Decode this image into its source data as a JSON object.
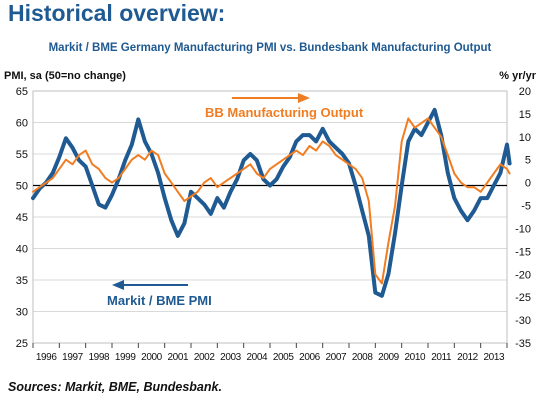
{
  "page": {
    "title": "Historical overview:",
    "source": "Sources: Markit, BME, Bundesbank."
  },
  "colors": {
    "title": "#1f5a92",
    "pmi_series": "#1f5a92",
    "output_series": "#f07d22",
    "axis_text": "#111111",
    "gridline": "#d9d9d9",
    "reference_line": "#000000"
  },
  "chart_data": {
    "type": "line",
    "title": "Markit / BME Germany Manufacturing PMI vs. Bundesbank Manufacturing Output",
    "ylabel_left": "PMI, sa (50=no change)",
    "ylabel_right": "% yr/yr",
    "ylim_left": [
      25,
      65
    ],
    "ylim_right": [
      -35,
      20
    ],
    "yticks_left": [
      25,
      30,
      35,
      40,
      45,
      50,
      55,
      60,
      65
    ],
    "yticks_right": [
      -35,
      -30,
      -25,
      -20,
      -15,
      -10,
      -5,
      0,
      5,
      10,
      15,
      20
    ],
    "xlim": [
      1996,
      2014
    ],
    "categories": [
      "1996",
      "1997",
      "1998",
      "1999",
      "2000",
      "2001",
      "2002",
      "2003",
      "2004",
      "2005",
      "2006",
      "2007",
      "2008",
      "2009",
      "2010",
      "2011",
      "2012",
      "2013"
    ],
    "reference_line": {
      "axis": "left",
      "value": 50
    },
    "grid": true,
    "annotations": [
      {
        "text": "BB Manufacturing Output",
        "points_to": "right-axis"
      },
      {
        "text": "Markit / BME PMI",
        "points_to": "left-axis"
      }
    ],
    "series": [
      {
        "name": "Markit / BME PMI",
        "axis": "left",
        "x": [
          1996.0,
          1996.25,
          1996.5,
          1996.75,
          1997.0,
          1997.25,
          1997.5,
          1997.75,
          1998.0,
          1998.25,
          1998.5,
          1998.75,
          1999.0,
          1999.25,
          1999.5,
          1999.75,
          2000.0,
          2000.25,
          2000.5,
          2000.75,
          2001.0,
          2001.25,
          2001.5,
          2001.75,
          2002.0,
          2002.25,
          2002.5,
          2002.75,
          2003.0,
          2003.25,
          2003.5,
          2003.75,
          2004.0,
          2004.25,
          2004.5,
          2004.75,
          2005.0,
          2005.25,
          2005.5,
          2005.75,
          2006.0,
          2006.25,
          2006.5,
          2006.75,
          2007.0,
          2007.25,
          2007.5,
          2007.75,
          2008.0,
          2008.25,
          2008.5,
          2008.75,
          2009.0,
          2009.25,
          2009.5,
          2009.75,
          2010.0,
          2010.25,
          2010.5,
          2010.75,
          2011.0,
          2011.25,
          2011.5,
          2011.75,
          2012.0,
          2012.25,
          2012.5,
          2012.75,
          2013.0,
          2013.25,
          2013.5,
          2013.75,
          2014.0,
          2014.1
        ],
        "values": [
          48,
          49.5,
          50.5,
          52,
          54.5,
          57.5,
          56,
          54,
          53,
          50,
          47,
          46.5,
          48.5,
          51,
          54,
          56.5,
          60.5,
          57,
          55,
          52,
          48,
          44.5,
          42,
          44,
          49,
          48,
          47,
          45.5,
          48,
          46.5,
          49,
          51,
          54,
          55,
          54,
          51,
          50,
          51,
          53,
          54.5,
          57,
          58,
          58,
          57,
          59,
          57,
          56,
          55,
          53.5,
          50,
          46,
          42,
          33,
          32.5,
          36,
          42.5,
          50,
          57,
          59,
          58,
          60,
          62,
          58,
          52,
          48,
          46,
          44.5,
          46,
          48,
          48,
          50,
          52,
          56.5,
          53.5
        ]
      },
      {
        "name": "BB Manufacturing Output",
        "axis": "right",
        "x": [
          1996.0,
          1996.25,
          1996.5,
          1996.75,
          1997.0,
          1997.25,
          1997.5,
          1997.75,
          1998.0,
          1998.25,
          1998.5,
          1998.75,
          1999.0,
          1999.25,
          1999.5,
          1999.75,
          2000.0,
          2000.25,
          2000.5,
          2000.75,
          2001.0,
          2001.25,
          2001.5,
          2001.75,
          2002.0,
          2002.25,
          2002.5,
          2002.75,
          2003.0,
          2003.25,
          2003.5,
          2003.75,
          2004.0,
          2004.25,
          2004.5,
          2004.75,
          2005.0,
          2005.25,
          2005.5,
          2005.75,
          2006.0,
          2006.25,
          2006.5,
          2006.75,
          2007.0,
          2007.25,
          2007.5,
          2007.75,
          2008.0,
          2008.25,
          2008.5,
          2008.75,
          2009.0,
          2009.25,
          2009.5,
          2009.75,
          2010.0,
          2010.25,
          2010.5,
          2010.75,
          2011.0,
          2011.25,
          2011.5,
          2011.75,
          2012.0,
          2012.25,
          2012.5,
          2012.75,
          2013.0,
          2013.25,
          2013.5,
          2013.75,
          2014.0,
          2014.1
        ],
        "values": [
          -2,
          -1,
          0,
          1,
          3,
          5,
          4,
          6,
          7,
          4,
          3,
          1,
          0,
          1,
          3,
          5,
          6,
          5,
          7,
          6,
          2,
          0,
          -2,
          -4,
          -3,
          -2,
          0,
          1,
          -1,
          0,
          1,
          2,
          3,
          4,
          2,
          1,
          3,
          4,
          5,
          6,
          7,
          6,
          8,
          7,
          9,
          8,
          6,
          5,
          4,
          3,
          1,
          -4,
          -20,
          -22,
          -13,
          -5,
          9,
          14,
          12,
          13,
          14,
          12,
          10,
          6,
          2,
          0,
          -1,
          -1,
          -2,
          0,
          2,
          4,
          3,
          2
        ]
      }
    ]
  }
}
